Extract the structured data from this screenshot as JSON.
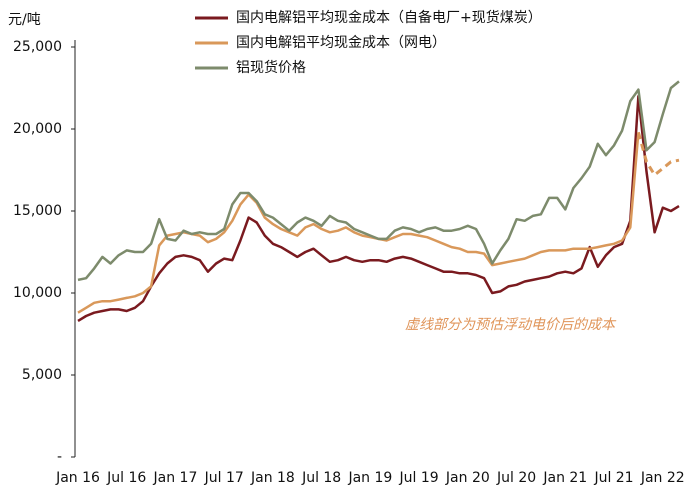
{
  "chart_data": {
    "type": "line",
    "y_label": "元/吨",
    "annotation": "虚线部分为预估浮动电价后的成本",
    "annotation_color": "#e0955a",
    "legend": "top",
    "categories": [
      "Jan 16",
      null,
      null,
      null,
      null,
      null,
      "Jul 16",
      null,
      null,
      null,
      null,
      null,
      "Jan 17",
      null,
      null,
      null,
      null,
      null,
      "Jul 17",
      null,
      null,
      null,
      null,
      null,
      "Jan 18",
      null,
      null,
      null,
      null,
      null,
      "Jul 18",
      null,
      null,
      null,
      null,
      null,
      "Jan 19",
      null,
      null,
      null,
      null,
      null,
      "Jul 19",
      null,
      null,
      null,
      null,
      null,
      "Jan 20",
      null,
      null,
      null,
      null,
      null,
      "Jul 20",
      null,
      null,
      null,
      null,
      null,
      "Jan 21",
      null,
      null,
      null,
      null,
      null,
      "Jul 21",
      null,
      null,
      null,
      null,
      null,
      "Jan 22",
      null,
      null
    ],
    "ylim": [
      0,
      25000
    ],
    "yticks": [
      {
        "value": 0,
        "label": "-"
      },
      {
        "value": 5000,
        "label": "5,000"
      },
      {
        "value": 10000,
        "label": "10,000"
      },
      {
        "value": 15000,
        "label": "15,000"
      },
      {
        "value": 20000,
        "label": "20,000"
      },
      {
        "value": 25000,
        "label": "25,000"
      }
    ],
    "series": [
      {
        "name": "国内电解铝平均现金成本（自备电厂+现货煤炭）",
        "color": "#7a1a1f",
        "values": [
          8300,
          8600,
          8800,
          8900,
          9000,
          9000,
          8900,
          9100,
          9500,
          10400,
          11200,
          11800,
          12200,
          12300,
          12200,
          12000,
          11300,
          11800,
          12100,
          12000,
          13200,
          14600,
          14300,
          13500,
          13000,
          12800,
          12500,
          12200,
          12500,
          12700,
          12300,
          11900,
          12000,
          12200,
          12000,
          11900,
          12000,
          12000,
          11900,
          12100,
          12200,
          12100,
          11900,
          11700,
          11500,
          11300,
          11300,
          11200,
          11200,
          11100,
          10900,
          10000,
          10100,
          10400,
          10500,
          10700,
          10800,
          10900,
          11000,
          11200,
          11300,
          11200,
          11500,
          12800,
          11600,
          12300,
          12800,
          13000,
          14400,
          22000,
          17400,
          13700,
          15200,
          15000,
          15300
        ]
      },
      {
        "name": "国内电解铝平均现金成本（网电）",
        "color": "#d9985a",
        "dashed_from": 69,
        "values": [
          8800,
          9100,
          9400,
          9500,
          9500,
          9600,
          9700,
          9800,
          10000,
          10400,
          12900,
          13500,
          13600,
          13700,
          13600,
          13500,
          13100,
          13300,
          13700,
          14400,
          15400,
          16000,
          15500,
          14600,
          14200,
          13900,
          13700,
          13500,
          14000,
          14200,
          13900,
          13700,
          13800,
          14000,
          13700,
          13500,
          13400,
          13300,
          13200,
          13400,
          13600,
          13600,
          13500,
          13400,
          13200,
          13000,
          12800,
          12700,
          12500,
          12500,
          12400,
          11700,
          11800,
          11900,
          12000,
          12100,
          12300,
          12500,
          12600,
          12600,
          12600,
          12700,
          12700,
          12700,
          12800,
          12900,
          13000,
          13200,
          14000,
          19800,
          18000,
          17200,
          17600,
          18000,
          18100
        ]
      },
      {
        "name": "铝现货价格",
        "color": "#7d8b6c",
        "values": [
          10800,
          10900,
          11500,
          12200,
          11800,
          12300,
          12600,
          12500,
          12500,
          13000,
          14500,
          13300,
          13200,
          13800,
          13600,
          13700,
          13600,
          13600,
          13900,
          15400,
          16100,
          16100,
          15600,
          14800,
          14600,
          14200,
          13800,
          14300,
          14600,
          14400,
          14100,
          14700,
          14400,
          14300,
          13900,
          13700,
          13500,
          13300,
          13300,
          13800,
          14000,
          13900,
          13700,
          13900,
          14000,
          13800,
          13800,
          13900,
          14100,
          13900,
          13000,
          11800,
          12600,
          13300,
          14500,
          14400,
          14700,
          14800,
          15800,
          15800,
          15100,
          16400,
          17000,
          17700,
          19100,
          18400,
          19000,
          19900,
          21700,
          22400,
          18700,
          19200,
          20900,
          22500,
          22900
        ]
      }
    ]
  }
}
